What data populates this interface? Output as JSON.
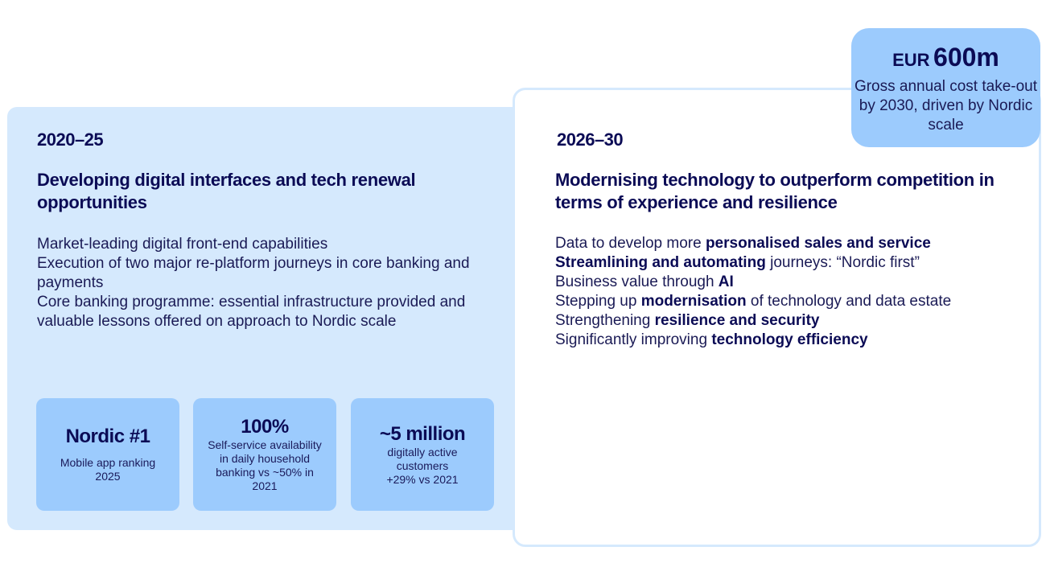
{
  "left": {
    "year": "2020–25",
    "heading": "Developing digital interfaces and tech renewal opportunities",
    "bullets": [
      "Market-leading digital front-end capabilities",
      "Execution of two major re-platform journeys in core banking and payments",
      "Core banking programme: essential infrastructure provided and valuable lessons offered on approach to Nordic scale"
    ],
    "cards": [
      {
        "big": "Nordic #1",
        "sub": "Mobile app ranking 2025"
      },
      {
        "big": "100%",
        "sub": "Self-service availability in daily household banking vs ~50% in 2021"
      },
      {
        "big": "~5 million",
        "sub": "digitally active customers +29% vs 2021"
      }
    ]
  },
  "right": {
    "year": "2026–30",
    "heading": "Modernising technology to outperform competition in terms of experience and resilience",
    "bullets": [
      {
        "pre": "Data to develop more ",
        "bold": "personalised sales and service",
        "post": ""
      },
      {
        "pre": "",
        "bold": "Streamlining and automating",
        "post": " journeys: “Nordic first”"
      },
      {
        "pre": "Business value through ",
        "bold": "AI",
        "post": ""
      },
      {
        "pre": "Stepping up ",
        "bold": "modernisation",
        "post": " of technology and data estate"
      },
      {
        "pre": "Strengthening ",
        "bold": "resilience and security",
        "post": ""
      },
      {
        "pre": "Significantly improving ",
        "bold": "technology efficiency",
        "post": ""
      }
    ]
  },
  "callout": {
    "currency": "EUR",
    "amount": "600m",
    "text": "Gross annual cost take-out by 2030, driven by Nordic scale"
  }
}
